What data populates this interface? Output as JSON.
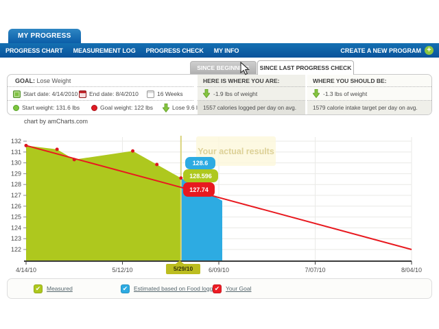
{
  "header": {
    "main_tab": "MY PROGRESS"
  },
  "navbar": {
    "items": [
      {
        "label": "PROGRESS CHART"
      },
      {
        "label": "MEASUREMENT LOG"
      },
      {
        "label": "PROGRESS CHECK"
      },
      {
        "label": "MY INFO"
      }
    ],
    "create_program_label": "CREATE A NEW PROGRAM",
    "plus_icon": "+"
  },
  "period_tabs": {
    "inactive": "SINCE BEGINNING",
    "active": "SINCE LAST PROGRESS CHECK"
  },
  "goal_panel": {
    "goal_label": "GOAL:",
    "goal_value": "Lose Weight",
    "start_date": "Start date: 4/14/2010",
    "end_date": "End date: 8/4/2010",
    "duration": "16 Weeks",
    "start_weight": "Start weight: 131.6 lbs",
    "goal_weight": "Goal weight: 122 lbs",
    "lose": "Lose 9.6 lbs",
    "here_header": "HERE IS WHERE YOU ARE:",
    "here_weight": "-1.9 lbs of weight",
    "here_calories": "1557 calories logged per day on avg.",
    "should_header": "WHERE YOU SHOULD BE:",
    "should_weight": "-1.3 lbs of weight",
    "should_calories": "1579 calorie intake target per day on avg."
  },
  "chart": {
    "credit": "chart by amCharts.com",
    "tooltip": "Your actual results",
    "balloon_estimated": "128.6",
    "balloon_measured": "128.596",
    "balloon_goal": "127.74",
    "cursor_date_label": "5/29/10"
  },
  "chart_data": {
    "type": "area",
    "ylim": [
      122,
      132
    ],
    "y_ticks": [
      132,
      131,
      130,
      129,
      128,
      127,
      126,
      125,
      124,
      123,
      122
    ],
    "x_ticks": [
      {
        "label": "4/14/10",
        "day": 0
      },
      {
        "label": "5/12/10",
        "day": 28
      },
      {
        "label": "5/29/10",
        "day": 45,
        "highlight": true
      },
      {
        "label": "6/09/10",
        "day": 56
      },
      {
        "label": "7/07/10",
        "day": 84
      },
      {
        "label": "8/04/10",
        "day": 112
      }
    ],
    "series": [
      {
        "name": "Measured",
        "type": "area",
        "color": "#aec81e",
        "markers": true,
        "marker_color": "#dd1720",
        "points": [
          [
            0,
            131.6
          ],
          [
            9,
            131.25
          ],
          [
            14,
            130.3
          ],
          [
            31,
            131.1
          ],
          [
            38,
            129.85
          ],
          [
            45,
            128.596
          ]
        ]
      },
      {
        "name": "Estimated based on Food logging",
        "type": "area",
        "color": "#2dabe2",
        "points": [
          [
            45,
            128.6
          ],
          [
            57,
            126.5
          ]
        ]
      },
      {
        "name": "Your Goal",
        "type": "line",
        "color": "#e8191f",
        "points": [
          [
            0,
            131.6
          ],
          [
            112,
            122
          ]
        ]
      }
    ],
    "cursor_day": 45,
    "cursor_color": "#d9d37b",
    "cursor_balloon_color": "#bcbd20",
    "grid": true,
    "legend_position": "bottom"
  },
  "legend": {
    "items": [
      {
        "label": "Measured",
        "color": "#aec81e",
        "check": "✔"
      },
      {
        "label": "Estimated based on Food logging",
        "color": "#2dabe2",
        "check": "✔"
      },
      {
        "label": "Your Goal",
        "color": "#ed1c24",
        "check": "✔"
      }
    ]
  }
}
